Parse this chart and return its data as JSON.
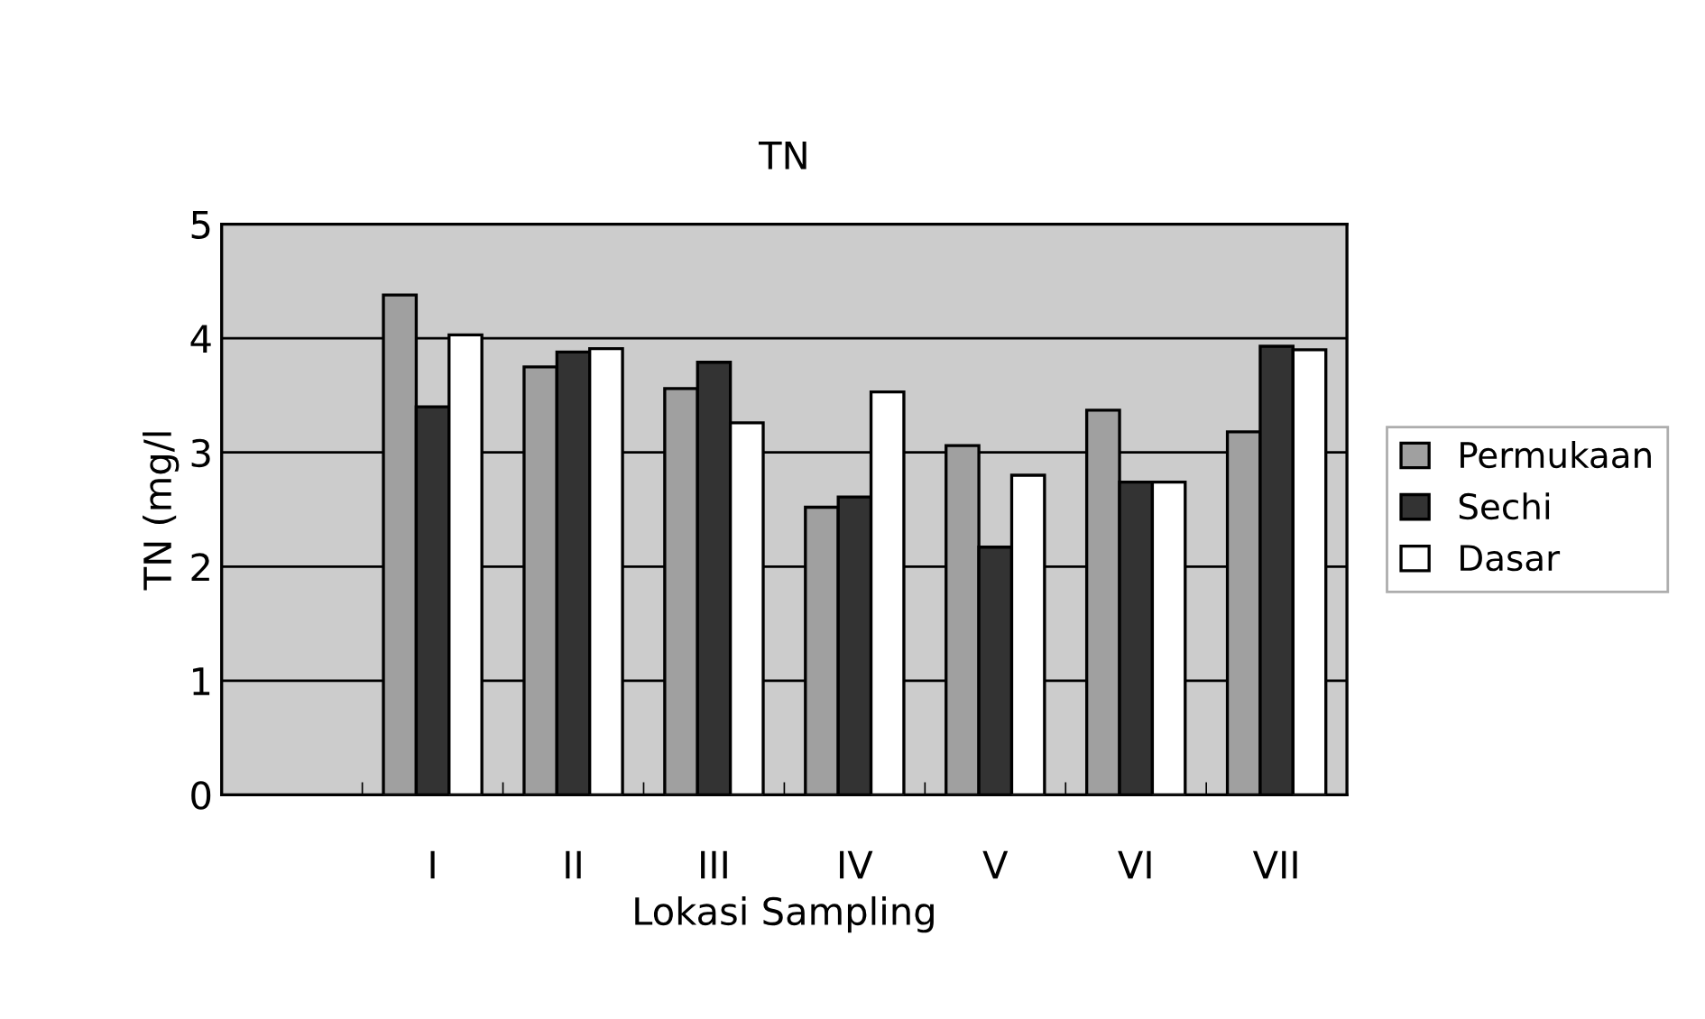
{
  "chart_data": {
    "type": "bar",
    "title": "TN",
    "xlabel": "Lokasi Sampling",
    "ylabel": "TN (mg/l",
    "categories": [
      null,
      "I",
      "II",
      "III",
      "IV",
      "V",
      "VI",
      "VII"
    ],
    "series": [
      {
        "name": "Permukaan",
        "color": "#a0a0a0",
        "values": [
          null,
          4.38,
          3.75,
          3.56,
          2.52,
          3.06,
          3.37,
          3.18
        ]
      },
      {
        "name": "Sechi",
        "color": "#333333",
        "values": [
          null,
          3.4,
          3.88,
          3.79,
          2.61,
          2.17,
          2.74,
          3.93
        ]
      },
      {
        "name": "Dasar",
        "color": "#ffffff",
        "values": [
          null,
          4.03,
          3.91,
          3.26,
          3.53,
          2.8,
          2.74,
          3.9
        ]
      }
    ],
    "ylim": [
      0,
      5
    ],
    "yticks": [
      0,
      1,
      2,
      3,
      4,
      5
    ],
    "grid": "y",
    "legend": "right"
  }
}
